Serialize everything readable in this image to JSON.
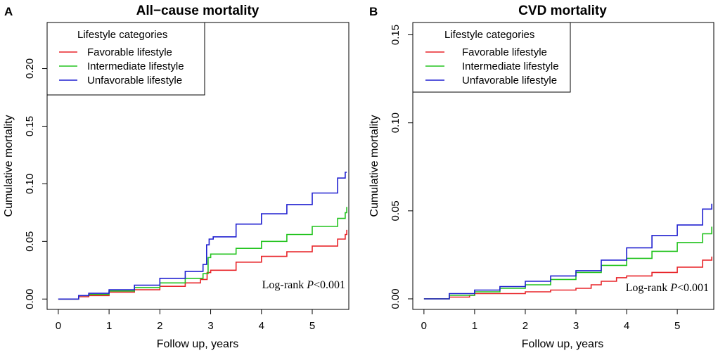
{
  "legend": {
    "title": "Lifestyle categories",
    "entries": [
      {
        "name": "Favorable lifestyle",
        "color": "#e8252a"
      },
      {
        "name": "Intermediate lifestyle",
        "color": "#22c31e"
      },
      {
        "name": "Unfavorable lifestyle",
        "color": "#2020d0"
      }
    ]
  },
  "chart_data": [
    {
      "panel": "A",
      "type": "line",
      "title": "All−cause mortality",
      "xlabel": "Follow up, years",
      "ylabel": "Cumulative mortality",
      "xlim": [
        -0.22,
        5.72
      ],
      "ylim": [
        -0.009,
        0.24
      ],
      "xticks": [
        0,
        1,
        2,
        3,
        4,
        5
      ],
      "yticks": [
        0.0,
        0.05,
        0.1,
        0.15,
        0.2
      ],
      "ytick_labels": [
        "0.00",
        "0.05",
        "0.10",
        "0.15",
        "0.20"
      ],
      "annotation_prefix": "Log-rank ",
      "annotation_p": "P",
      "annotation_suffix": "<0.001",
      "series": [
        {
          "name": "Favorable lifestyle",
          "color": "#e8252a",
          "x": [
            0,
            0.3,
            0.4,
            0.6,
            1.0,
            1.5,
            2.0,
            2.5,
            2.8,
            2.93,
            3.0,
            3.5,
            4.0,
            4.5,
            5.0,
            5.5,
            5.65,
            5.68
          ],
          "y": [
            0,
            0,
            0.002,
            0.003,
            0.006,
            0.008,
            0.011,
            0.014,
            0.017,
            0.023,
            0.025,
            0.032,
            0.037,
            0.041,
            0.046,
            0.052,
            0.056,
            0.06
          ]
        },
        {
          "name": "Intermediate lifestyle",
          "color": "#22c31e",
          "x": [
            0,
            0.3,
            0.4,
            0.6,
            1.0,
            1.5,
            2.0,
            2.5,
            2.85,
            2.95,
            3.0,
            3.5,
            4.0,
            4.5,
            5.0,
            5.5,
            5.65,
            5.68
          ],
          "y": [
            0,
            0,
            0.003,
            0.004,
            0.007,
            0.01,
            0.014,
            0.018,
            0.022,
            0.036,
            0.039,
            0.044,
            0.05,
            0.056,
            0.063,
            0.07,
            0.075,
            0.08
          ]
        },
        {
          "name": "Unfavorable lifestyle",
          "color": "#2020d0",
          "x": [
            0,
            0.3,
            0.4,
            0.6,
            1.0,
            1.5,
            2.0,
            2.5,
            2.85,
            2.92,
            2.97,
            3.05,
            3.5,
            4.0,
            4.5,
            5.0,
            5.5,
            5.65,
            5.68
          ],
          "y": [
            0,
            0,
            0.003,
            0.005,
            0.008,
            0.012,
            0.018,
            0.024,
            0.03,
            0.047,
            0.052,
            0.054,
            0.065,
            0.074,
            0.082,
            0.092,
            0.105,
            0.11,
            0.11
          ]
        }
      ]
    },
    {
      "panel": "B",
      "type": "line",
      "title": "CVD mortality",
      "xlabel": "Follow up, years",
      "ylabel": "Cumulative mortality",
      "xlim": [
        -0.22,
        5.72
      ],
      "ylim": [
        -0.006,
        0.157
      ],
      "xticks": [
        0,
        1,
        2,
        3,
        4,
        5
      ],
      "yticks": [
        0.0,
        0.05,
        0.1,
        0.15
      ],
      "ytick_labels": [
        "0.00",
        "0.05",
        "0.10",
        "0.15"
      ],
      "annotation_prefix": "Log-rank ",
      "annotation_p": "P",
      "annotation_suffix": "<0.001",
      "series": [
        {
          "name": "Favorable lifestyle",
          "color": "#e8252a",
          "x": [
            0,
            0.3,
            0.5,
            0.9,
            1.0,
            1.5,
            2.0,
            2.5,
            3.0,
            3.3,
            3.5,
            3.8,
            4.0,
            4.5,
            5.0,
            5.5,
            5.68
          ],
          "y": [
            0,
            0,
            0.001,
            0.002,
            0.003,
            0.003,
            0.004,
            0.005,
            0.006,
            0.008,
            0.01,
            0.012,
            0.013,
            0.015,
            0.018,
            0.022,
            0.024
          ]
        },
        {
          "name": "Intermediate lifestyle",
          "color": "#22c31e",
          "x": [
            0,
            0.3,
            0.5,
            1.0,
            1.5,
            2.0,
            2.5,
            3.0,
            3.5,
            4.0,
            4.5,
            5.0,
            5.5,
            5.68
          ],
          "y": [
            0,
            0,
            0.002,
            0.004,
            0.006,
            0.008,
            0.011,
            0.015,
            0.019,
            0.023,
            0.027,
            0.032,
            0.037,
            0.041
          ]
        },
        {
          "name": "Unfavorable lifestyle",
          "color": "#2020d0",
          "x": [
            0,
            0.3,
            0.5,
            1.0,
            1.5,
            2.0,
            2.5,
            3.0,
            3.5,
            4.0,
            4.5,
            5.0,
            5.5,
            5.68
          ],
          "y": [
            0,
            0,
            0.003,
            0.005,
            0.007,
            0.01,
            0.013,
            0.016,
            0.022,
            0.029,
            0.036,
            0.042,
            0.051,
            0.054
          ]
        }
      ]
    }
  ]
}
